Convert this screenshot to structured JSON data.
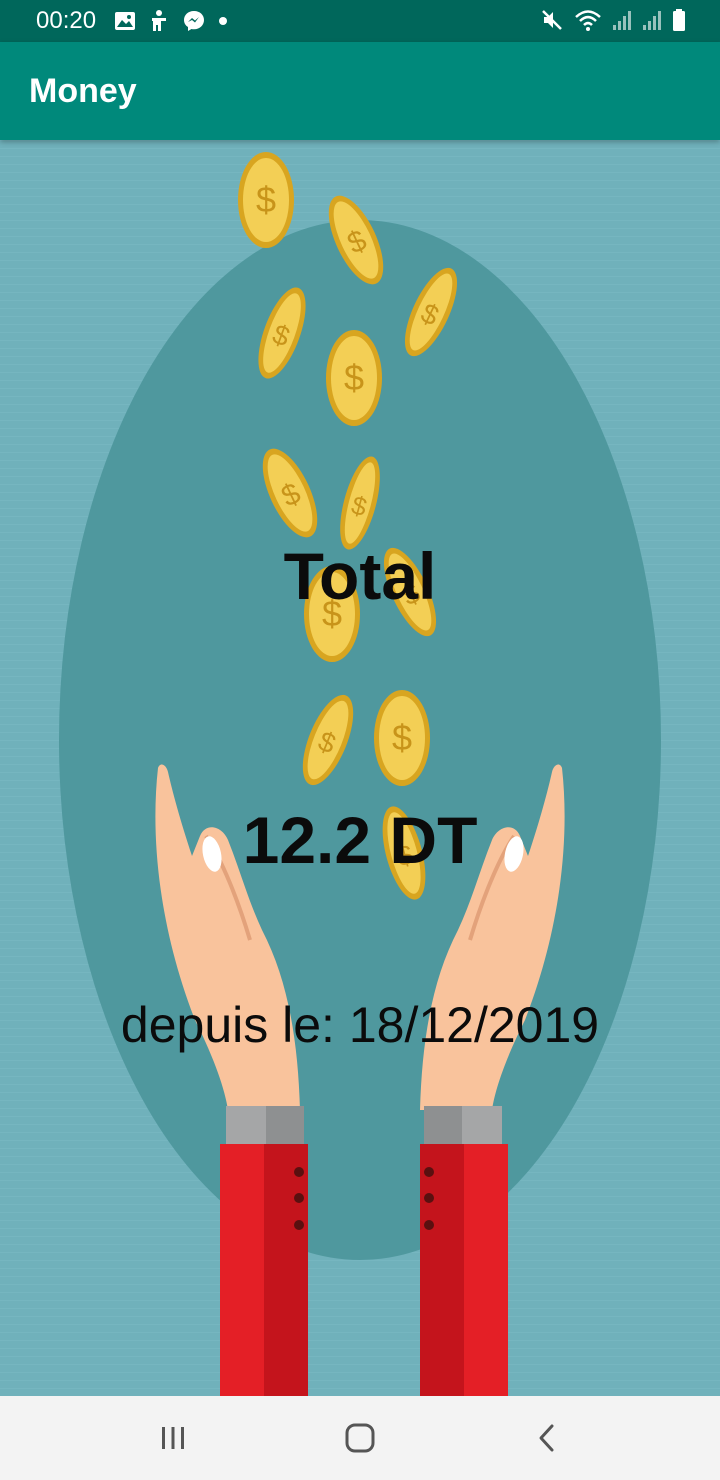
{
  "status_bar": {
    "time": "00:20",
    "left_icons": [
      "image-icon",
      "accessibility-icon",
      "messenger-icon",
      "dot-icon"
    ],
    "right_icons": [
      "mute-icon",
      "wifi-icon",
      "signal-icon",
      "signal-icon",
      "battery-icon"
    ]
  },
  "app_bar": {
    "title": "Money"
  },
  "main": {
    "total_label": "Total",
    "amount": "12.2 DT",
    "since_label": "depuis le:",
    "since_date": "18/12/2019"
  },
  "nav_bar": {
    "buttons": [
      "recent-apps-icon",
      "home-icon",
      "back-icon"
    ]
  },
  "colors": {
    "status_bar": "#00675b",
    "app_bar": "#00897b",
    "background": "#70b1bb",
    "oval": "#4f989e",
    "coin": "#f3cf55",
    "sleeve": "#e41f26"
  }
}
